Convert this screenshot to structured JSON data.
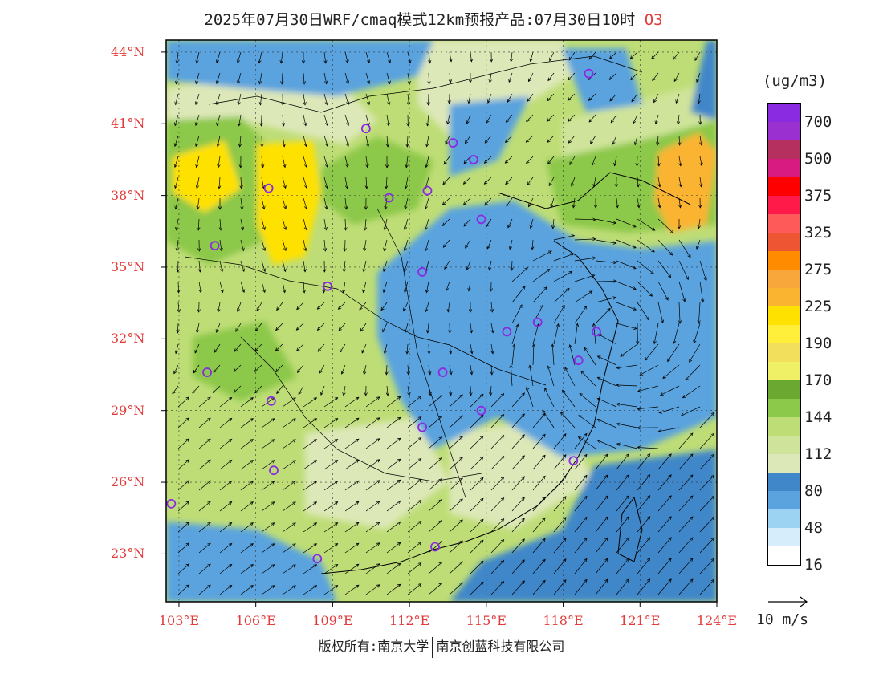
{
  "title": {
    "text": "2025年07月30日WRF/cmaq模式12km预报产品:07月30日10时",
    "species": "O3"
  },
  "axes": {
    "lat_labels": [
      "44°N",
      "41°N",
      "38°N",
      "35°N",
      "32°N",
      "29°N",
      "26°N",
      "23°N"
    ],
    "lon_labels": [
      "103°E",
      "106°E",
      "109°E",
      "112°E",
      "115°E",
      "118°E",
      "121°E",
      "124°E"
    ],
    "lat_range": [
      21,
      44.5
    ],
    "lon_range": [
      102.5,
      124
    ]
  },
  "legend": {
    "unit": "(ug/m3)",
    "labels": [
      "700",
      "500",
      "375",
      "325",
      "275",
      "225",
      "190",
      "170",
      "144",
      "112",
      "80",
      "48",
      "16"
    ],
    "colors": [
      "#8a2be2",
      "#9b30d0",
      "#b5305f",
      "#d81b80",
      "#ff0000",
      "#ff1a4a",
      "#ff5a5a",
      "#ee5533",
      "#ff8c00",
      "#f8a83a",
      "#fbb430",
      "#ffe100",
      "#ffef3a",
      "#f2df5c",
      "#f0f066",
      "#6aa832",
      "#8cc84a",
      "#bedd76",
      "#cfe49a",
      "#dde8b8",
      "#3f87c9",
      "#5aa3de",
      "#9dd3f2",
      "#d6eefb",
      "#ffffff"
    ]
  },
  "wind_reference": {
    "label": "10 m/s"
  },
  "copyright": {
    "left": "版权所有:南京大学",
    "right": "南京创蓝科技有限公司"
  },
  "stations": [
    [
      119.0,
      43.1
    ],
    [
      110.3,
      40.8
    ],
    [
      113.7,
      40.2
    ],
    [
      114.5,
      39.5
    ],
    [
      106.5,
      38.3
    ],
    [
      112.7,
      38.2
    ],
    [
      111.2,
      37.9
    ],
    [
      114.8,
      37.0
    ],
    [
      104.4,
      35.9
    ],
    [
      112.5,
      34.8
    ],
    [
      108.8,
      34.2
    ],
    [
      117.0,
      32.7
    ],
    [
      115.8,
      32.3
    ],
    [
      119.3,
      32.3
    ],
    [
      118.6,
      31.1
    ],
    [
      104.1,
      30.6
    ],
    [
      113.3,
      30.6
    ],
    [
      106.6,
      29.4
    ],
    [
      114.8,
      29.0
    ],
    [
      112.5,
      28.3
    ],
    [
      118.4,
      26.9
    ],
    [
      106.7,
      26.5
    ],
    [
      102.7,
      25.1
    ],
    [
      113.0,
      23.3
    ],
    [
      108.4,
      22.8
    ]
  ]
}
